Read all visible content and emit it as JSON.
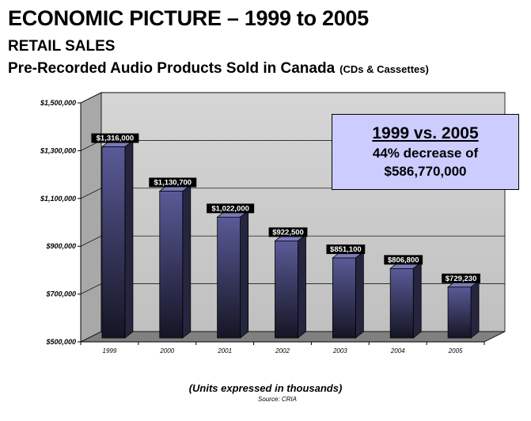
{
  "header": {
    "title": "ECONOMIC PICTURE – 1999 to 2005",
    "subtitle": "RETAIL SALES",
    "chart_title": "Pre-Recorded Audio Products Sold in Canada",
    "chart_title_note": "(CDs & Cassettes)"
  },
  "callout": {
    "heading": "1999 vs. 2005",
    "line1": "44% decrease of",
    "line2": "$586,770,000"
  },
  "footer": {
    "units_note": "(Units expressed in thousands)",
    "source": "Source:  CRIA"
  },
  "colors": {
    "bar_front": "#5a5a98",
    "bar_side": "#25253f",
    "wall": "#c0c0c0",
    "floor": "#808080"
  },
  "chart_data": {
    "type": "bar",
    "categories": [
      "1999",
      "2000",
      "2001",
      "2002",
      "2003",
      "2004",
      "2005"
    ],
    "values": [
      1316000,
      1130700,
      1022000,
      922500,
      851100,
      806800,
      729230
    ],
    "data_labels": [
      "$1,316,000",
      "$1,130,700",
      "$1,022,000",
      "$922,500",
      "$851,100",
      "$806,800",
      "$729,230"
    ],
    "yticks": [
      "$500,000",
      "$700,000",
      "$900,000",
      "$1,100,000",
      "$1,300,000",
      "$1,500,000"
    ],
    "ytick_values": [
      500000,
      700000,
      900000,
      1100000,
      1300000,
      1500000
    ],
    "ylim": [
      500000,
      1500000
    ],
    "grid": true,
    "style": "3d"
  }
}
